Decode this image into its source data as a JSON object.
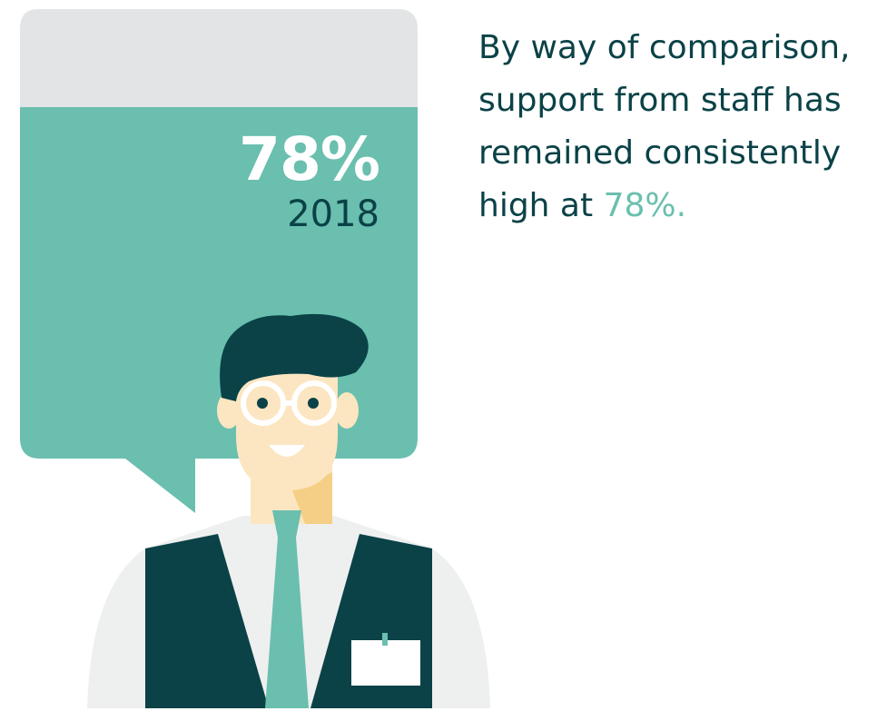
{
  "stat": {
    "value": "78%",
    "year": "2018"
  },
  "caption": {
    "text": "By way of comparison, support from staff has remained consistently high at",
    "highlight": "78%."
  },
  "colors": {
    "teal": "#6abfae",
    "dark_teal": "#0a4247",
    "bubble_top_grey": "#e3e4e6",
    "skin": "#fbe6c1",
    "shirt": "#eeefef"
  },
  "icons": [
    "speech-bubble",
    "staff-member-illustration"
  ]
}
